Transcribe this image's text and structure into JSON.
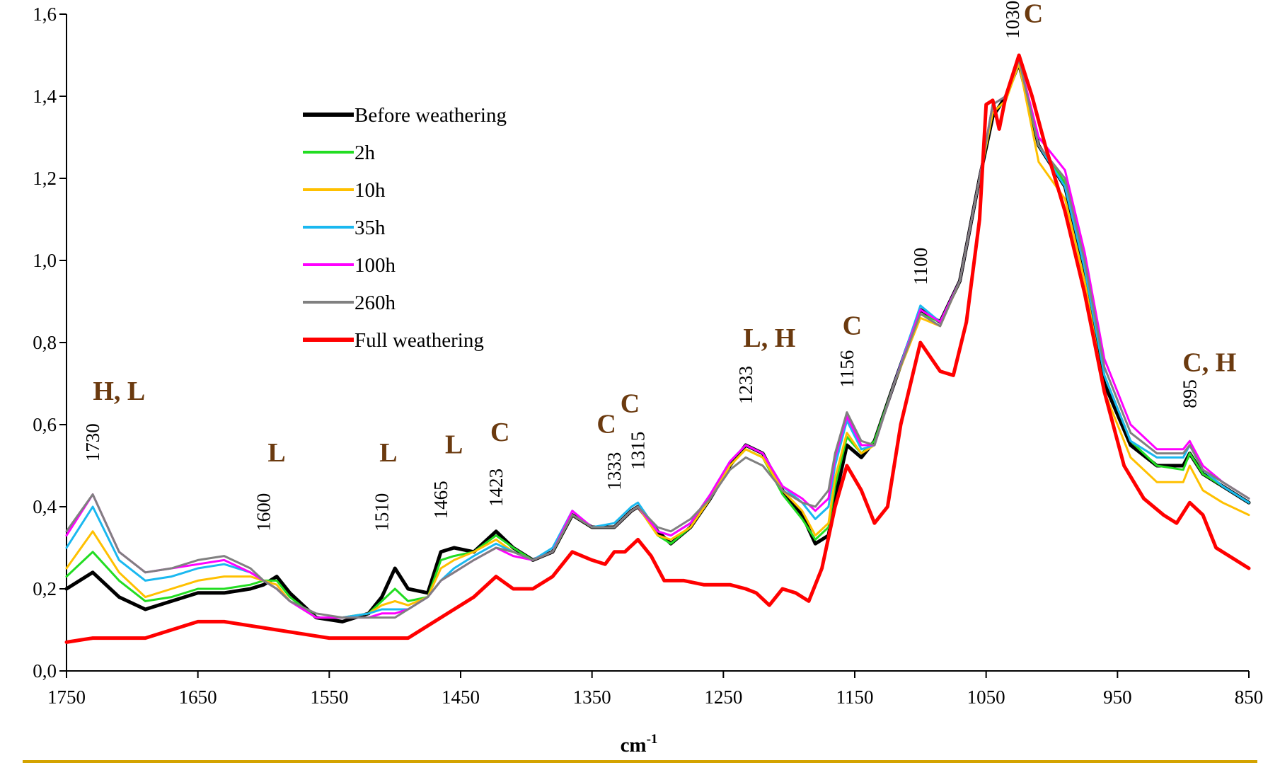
{
  "chart_data": {
    "type": "line",
    "title": "",
    "xlabel": "cm",
    "xlabel_superscript": "-1",
    "ylabel": "",
    "xlim": [
      1750,
      850
    ],
    "ylim": [
      0.0,
      1.6
    ],
    "x_reversed": true,
    "xticks": [
      {
        "value": 1750,
        "label": "1750"
      },
      {
        "value": 1650,
        "label": "1650"
      },
      {
        "value": 1550,
        "label": "1550"
      },
      {
        "value": 1450,
        "label": "1450"
      },
      {
        "value": 1350,
        "label": "1350"
      },
      {
        "value": 1250,
        "label": "1250"
      },
      {
        "value": 1150,
        "label": "1150"
      },
      {
        "value": 1050,
        "label": "1050"
      },
      {
        "value": 950,
        "label": "950"
      },
      {
        "value": 850,
        "label": "850"
      }
    ],
    "yticks": [
      {
        "value": 0.0,
        "label": "0,0"
      },
      {
        "value": 0.2,
        "label": "0,2"
      },
      {
        "value": 0.4,
        "label": "0,4"
      },
      {
        "value": 0.6,
        "label": "0,6"
      },
      {
        "value": 0.8,
        "label": "0,8"
      },
      {
        "value": 1.0,
        "label": "1,0"
      },
      {
        "value": 1.2,
        "label": "1,2"
      },
      {
        "value": 1.4,
        "label": "1,4"
      },
      {
        "value": 1.6,
        "label": "1,6"
      }
    ],
    "grid": false,
    "legend_position": "upper-left",
    "series": [
      {
        "name": "Before weathering",
        "color": "#000000",
        "x": [
          1750,
          1730,
          1710,
          1690,
          1670,
          1650,
          1630,
          1610,
          1600,
          1590,
          1580,
          1560,
          1540,
          1520,
          1510,
          1500,
          1490,
          1475,
          1465,
          1455,
          1440,
          1423,
          1410,
          1395,
          1380,
          1365,
          1350,
          1333,
          1320,
          1315,
          1300,
          1290,
          1275,
          1260,
          1245,
          1233,
          1220,
          1205,
          1190,
          1180,
          1170,
          1165,
          1156,
          1145,
          1135,
          1120,
          1100,
          1085,
          1070,
          1055,
          1045,
          1035,
          1025,
          1010,
          990,
          975,
          960,
          940,
          920,
          900,
          895,
          885,
          870,
          850
        ],
        "y": [
          0.2,
          0.24,
          0.18,
          0.15,
          0.17,
          0.19,
          0.19,
          0.2,
          0.21,
          0.23,
          0.19,
          0.13,
          0.12,
          0.14,
          0.18,
          0.25,
          0.2,
          0.19,
          0.29,
          0.3,
          0.29,
          0.34,
          0.3,
          0.27,
          0.29,
          0.38,
          0.35,
          0.35,
          0.39,
          0.4,
          0.34,
          0.31,
          0.35,
          0.42,
          0.5,
          0.55,
          0.53,
          0.44,
          0.38,
          0.31,
          0.33,
          0.42,
          0.55,
          0.52,
          0.56,
          0.7,
          0.88,
          0.85,
          0.95,
          1.2,
          1.35,
          1.4,
          1.48,
          1.28,
          1.18,
          0.98,
          0.7,
          0.55,
          0.5,
          0.5,
          0.53,
          0.48,
          0.45,
          0.41
        ]
      },
      {
        "name": "2h",
        "color": "#22dd22",
        "x": [
          1750,
          1730,
          1710,
          1690,
          1670,
          1650,
          1630,
          1610,
          1600,
          1590,
          1580,
          1560,
          1540,
          1520,
          1510,
          1500,
          1490,
          1475,
          1465,
          1455,
          1440,
          1423,
          1410,
          1395,
          1380,
          1365,
          1350,
          1333,
          1320,
          1315,
          1300,
          1290,
          1275,
          1260,
          1245,
          1233,
          1220,
          1205,
          1190,
          1180,
          1170,
          1165,
          1156,
          1145,
          1135,
          1120,
          1100,
          1085,
          1070,
          1055,
          1045,
          1035,
          1025,
          1010,
          990,
          975,
          960,
          940,
          920,
          900,
          895,
          885,
          870,
          850
        ],
        "y": [
          0.23,
          0.29,
          0.22,
          0.17,
          0.18,
          0.2,
          0.2,
          0.21,
          0.22,
          0.22,
          0.18,
          0.13,
          0.13,
          0.14,
          0.17,
          0.2,
          0.17,
          0.18,
          0.27,
          0.28,
          0.29,
          0.33,
          0.3,
          0.27,
          0.29,
          0.38,
          0.35,
          0.35,
          0.39,
          0.4,
          0.33,
          0.31,
          0.35,
          0.42,
          0.5,
          0.54,
          0.52,
          0.43,
          0.37,
          0.32,
          0.35,
          0.45,
          0.57,
          0.53,
          0.56,
          0.7,
          0.87,
          0.85,
          0.95,
          1.2,
          1.36,
          1.39,
          1.48,
          1.28,
          1.19,
          0.98,
          0.72,
          0.56,
          0.5,
          0.49,
          0.53,
          0.48,
          0.45,
          0.41
        ]
      },
      {
        "name": "10h",
        "color": "#ffc000",
        "x": [
          1750,
          1730,
          1710,
          1690,
          1670,
          1650,
          1630,
          1610,
          1600,
          1590,
          1580,
          1560,
          1540,
          1520,
          1510,
          1500,
          1490,
          1475,
          1465,
          1455,
          1440,
          1423,
          1410,
          1395,
          1380,
          1365,
          1350,
          1333,
          1320,
          1315,
          1300,
          1290,
          1275,
          1260,
          1245,
          1233,
          1220,
          1205,
          1190,
          1180,
          1170,
          1165,
          1156,
          1145,
          1135,
          1120,
          1100,
          1085,
          1070,
          1055,
          1045,
          1035,
          1025,
          1010,
          990,
          975,
          960,
          940,
          920,
          900,
          895,
          885,
          870,
          850
        ],
        "y": [
          0.25,
          0.34,
          0.24,
          0.18,
          0.2,
          0.22,
          0.23,
          0.23,
          0.22,
          0.21,
          0.17,
          0.13,
          0.13,
          0.14,
          0.16,
          0.17,
          0.16,
          0.18,
          0.25,
          0.27,
          0.29,
          0.32,
          0.29,
          0.27,
          0.29,
          0.38,
          0.35,
          0.35,
          0.39,
          0.4,
          0.33,
          0.32,
          0.35,
          0.42,
          0.5,
          0.54,
          0.52,
          0.44,
          0.39,
          0.33,
          0.36,
          0.47,
          0.58,
          0.53,
          0.55,
          0.7,
          0.86,
          0.84,
          0.95,
          1.2,
          1.36,
          1.39,
          1.48,
          1.24,
          1.15,
          0.95,
          0.68,
          0.52,
          0.46,
          0.46,
          0.5,
          0.44,
          0.41,
          0.38
        ]
      },
      {
        "name": "35h",
        "color": "#1ab8f0",
        "x": [
          1750,
          1730,
          1710,
          1690,
          1670,
          1650,
          1630,
          1610,
          1600,
          1590,
          1580,
          1560,
          1540,
          1520,
          1510,
          1500,
          1490,
          1475,
          1465,
          1455,
          1440,
          1423,
          1410,
          1395,
          1380,
          1365,
          1350,
          1333,
          1320,
          1315,
          1300,
          1290,
          1275,
          1260,
          1245,
          1233,
          1220,
          1205,
          1190,
          1180,
          1170,
          1165,
          1156,
          1145,
          1135,
          1120,
          1100,
          1085,
          1070,
          1055,
          1045,
          1035,
          1025,
          1010,
          990,
          975,
          960,
          940,
          920,
          900,
          895,
          885,
          870,
          850
        ],
        "y": [
          0.3,
          0.4,
          0.27,
          0.22,
          0.23,
          0.25,
          0.26,
          0.24,
          0.22,
          0.2,
          0.17,
          0.13,
          0.13,
          0.14,
          0.15,
          0.15,
          0.15,
          0.18,
          0.22,
          0.25,
          0.28,
          0.31,
          0.29,
          0.27,
          0.3,
          0.39,
          0.35,
          0.36,
          0.4,
          0.41,
          0.34,
          0.33,
          0.36,
          0.43,
          0.51,
          0.55,
          0.53,
          0.45,
          0.41,
          0.37,
          0.4,
          0.5,
          0.61,
          0.54,
          0.55,
          0.7,
          0.89,
          0.85,
          0.95,
          1.2,
          1.38,
          1.4,
          1.49,
          1.28,
          1.18,
          0.98,
          0.72,
          0.56,
          0.52,
          0.52,
          0.55,
          0.49,
          0.45,
          0.41
        ]
      },
      {
        "name": "100h",
        "color": "#ff00ff",
        "x": [
          1750,
          1730,
          1710,
          1690,
          1670,
          1650,
          1630,
          1610,
          1600,
          1590,
          1580,
          1560,
          1540,
          1520,
          1510,
          1500,
          1490,
          1475,
          1465,
          1455,
          1440,
          1423,
          1410,
          1395,
          1380,
          1365,
          1350,
          1333,
          1320,
          1315,
          1300,
          1290,
          1275,
          1260,
          1245,
          1233,
          1220,
          1205,
          1190,
          1180,
          1170,
          1165,
          1156,
          1145,
          1135,
          1120,
          1100,
          1085,
          1070,
          1055,
          1045,
          1035,
          1025,
          1010,
          990,
          975,
          960,
          940,
          920,
          900,
          895,
          885,
          870,
          850
        ],
        "y": [
          0.33,
          0.43,
          0.29,
          0.24,
          0.25,
          0.26,
          0.27,
          0.24,
          0.22,
          0.2,
          0.17,
          0.13,
          0.13,
          0.13,
          0.14,
          0.14,
          0.15,
          0.18,
          0.22,
          0.24,
          0.27,
          0.3,
          0.28,
          0.27,
          0.29,
          0.39,
          0.35,
          0.35,
          0.39,
          0.4,
          0.34,
          0.33,
          0.36,
          0.43,
          0.51,
          0.55,
          0.53,
          0.45,
          0.42,
          0.39,
          0.42,
          0.52,
          0.62,
          0.55,
          0.55,
          0.7,
          0.88,
          0.85,
          0.95,
          1.2,
          1.38,
          1.4,
          1.49,
          1.3,
          1.22,
          1.02,
          0.76,
          0.6,
          0.54,
          0.54,
          0.56,
          0.5,
          0.46,
          0.42
        ]
      },
      {
        "name": "260h",
        "color": "#808080",
        "x": [
          1750,
          1730,
          1710,
          1690,
          1670,
          1650,
          1630,
          1610,
          1600,
          1590,
          1580,
          1560,
          1540,
          1520,
          1510,
          1500,
          1490,
          1475,
          1465,
          1455,
          1440,
          1423,
          1410,
          1395,
          1380,
          1365,
          1350,
          1333,
          1320,
          1315,
          1300,
          1290,
          1275,
          1260,
          1245,
          1233,
          1220,
          1205,
          1190,
          1180,
          1170,
          1165,
          1156,
          1145,
          1135,
          1120,
          1100,
          1085,
          1070,
          1055,
          1045,
          1035,
          1025,
          1010,
          990,
          975,
          960,
          940,
          920,
          900,
          895,
          885,
          870,
          850
        ],
        "y": [
          0.34,
          0.43,
          0.29,
          0.24,
          0.25,
          0.27,
          0.28,
          0.25,
          0.22,
          0.2,
          0.17,
          0.14,
          0.13,
          0.13,
          0.13,
          0.13,
          0.15,
          0.18,
          0.22,
          0.24,
          0.27,
          0.3,
          0.29,
          0.27,
          0.29,
          0.38,
          0.35,
          0.35,
          0.39,
          0.4,
          0.35,
          0.34,
          0.37,
          0.42,
          0.49,
          0.52,
          0.5,
          0.44,
          0.41,
          0.4,
          0.44,
          0.53,
          0.63,
          0.56,
          0.55,
          0.7,
          0.87,
          0.84,
          0.95,
          1.2,
          1.38,
          1.4,
          1.49,
          1.28,
          1.2,
          1.0,
          0.74,
          0.58,
          0.53,
          0.53,
          0.55,
          0.49,
          0.46,
          0.42
        ]
      },
      {
        "name": "Full weathering",
        "color": "#ff0000",
        "x": [
          1750,
          1730,
          1710,
          1690,
          1670,
          1650,
          1630,
          1610,
          1590,
          1570,
          1550,
          1530,
          1510,
          1490,
          1470,
          1450,
          1440,
          1423,
          1410,
          1395,
          1380,
          1365,
          1350,
          1340,
          1333,
          1325,
          1315,
          1305,
          1295,
          1280,
          1265,
          1245,
          1233,
          1225,
          1215,
          1205,
          1195,
          1185,
          1175,
          1165,
          1156,
          1145,
          1135,
          1125,
          1115,
          1100,
          1085,
          1075,
          1065,
          1055,
          1050,
          1045,
          1040,
          1035,
          1025,
          1015,
          1005,
          990,
          975,
          960,
          945,
          930,
          915,
          905,
          895,
          885,
          875,
          860,
          850
        ],
        "y": [
          0.07,
          0.08,
          0.08,
          0.08,
          0.1,
          0.12,
          0.12,
          0.11,
          0.1,
          0.09,
          0.08,
          0.08,
          0.08,
          0.08,
          0.12,
          0.16,
          0.18,
          0.23,
          0.2,
          0.2,
          0.23,
          0.29,
          0.27,
          0.26,
          0.29,
          0.29,
          0.32,
          0.28,
          0.22,
          0.22,
          0.21,
          0.21,
          0.2,
          0.19,
          0.16,
          0.2,
          0.19,
          0.17,
          0.25,
          0.4,
          0.5,
          0.44,
          0.36,
          0.4,
          0.6,
          0.8,
          0.73,
          0.72,
          0.85,
          1.1,
          1.38,
          1.39,
          1.32,
          1.4,
          1.5,
          1.4,
          1.28,
          1.12,
          0.92,
          0.68,
          0.5,
          0.42,
          0.38,
          0.36,
          0.41,
          0.38,
          0.3,
          0.27,
          0.25
        ]
      }
    ],
    "peak_labels": [
      {
        "x": 1730,
        "y": 0.51,
        "text": "1730"
      },
      {
        "x": 1600,
        "y": 0.34,
        "text": "1600"
      },
      {
        "x": 1510,
        "y": 0.34,
        "text": "1510"
      },
      {
        "x": 1465,
        "y": 0.37,
        "text": "1465"
      },
      {
        "x": 1423,
        "y": 0.4,
        "text": "1423"
      },
      {
        "x": 1333,
        "y": 0.44,
        "text": "1333"
      },
      {
        "x": 1315,
        "y": 0.49,
        "text": "1315"
      },
      {
        "x": 1233,
        "y": 0.65,
        "text": "1233"
      },
      {
        "x": 1156,
        "y": 0.69,
        "text": "1156"
      },
      {
        "x": 1100,
        "y": 0.94,
        "text": "1100"
      },
      {
        "x": 1030,
        "y": 1.54,
        "text": "1030"
      },
      {
        "x": 895,
        "y": 0.64,
        "text": "895"
      }
    ],
    "band_labels": [
      {
        "x": 1710,
        "y": 0.66,
        "text": "H, L"
      },
      {
        "x": 1590,
        "y": 0.51,
        "text": "L"
      },
      {
        "x": 1505,
        "y": 0.51,
        "text": "L"
      },
      {
        "x": 1455,
        "y": 0.53,
        "text": "L"
      },
      {
        "x": 1420,
        "y": 0.56,
        "text": "C"
      },
      {
        "x": 1339,
        "y": 0.58,
        "text": "C"
      },
      {
        "x": 1321,
        "y": 0.63,
        "text": "C"
      },
      {
        "x": 1215,
        "y": 0.79,
        "text": "L, H"
      },
      {
        "x": 1152,
        "y": 0.82,
        "text": "C"
      },
      {
        "x": 1014,
        "y": 1.58,
        "text": "C"
      },
      {
        "x": 880,
        "y": 0.73,
        "text": "C, H"
      }
    ]
  }
}
